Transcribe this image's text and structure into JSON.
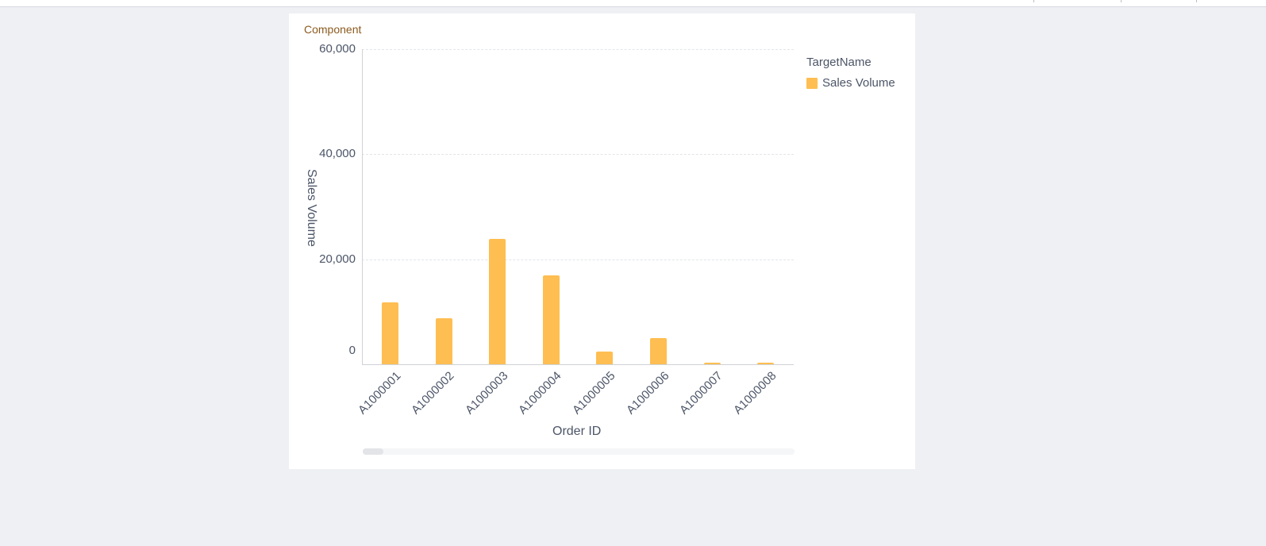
{
  "card": {
    "title": "Component"
  },
  "legend": {
    "title": "TargetName",
    "items": [
      {
        "label": "Sales Volume",
        "color": "#ffbe51"
      }
    ]
  },
  "axes": {
    "y_ticks": [
      "0",
      "20,000",
      "40,000",
      "60,000"
    ],
    "xlabel": "Order ID",
    "ylabel": "Sales Volume"
  },
  "chart_data": {
    "type": "bar",
    "title": "Component",
    "categories": [
      "A1000001",
      "A1000002",
      "A1000003",
      "A1000004",
      "A1000005",
      "A1000006",
      "A1000007",
      "A1000008"
    ],
    "series": [
      {
        "name": "Sales Volume",
        "color": "#ffbe51",
        "values": [
          11800,
          8800,
          23900,
          16900,
          2400,
          5000,
          300,
          300
        ]
      }
    ],
    "xlabel": "Order ID",
    "ylabel": "Sales Volume",
    "ylim": [
      0,
      60000
    ],
    "y_ticks": [
      0,
      20000,
      40000,
      60000
    ],
    "grid": true,
    "legend_position": "right",
    "legend_title": "TargetName"
  }
}
